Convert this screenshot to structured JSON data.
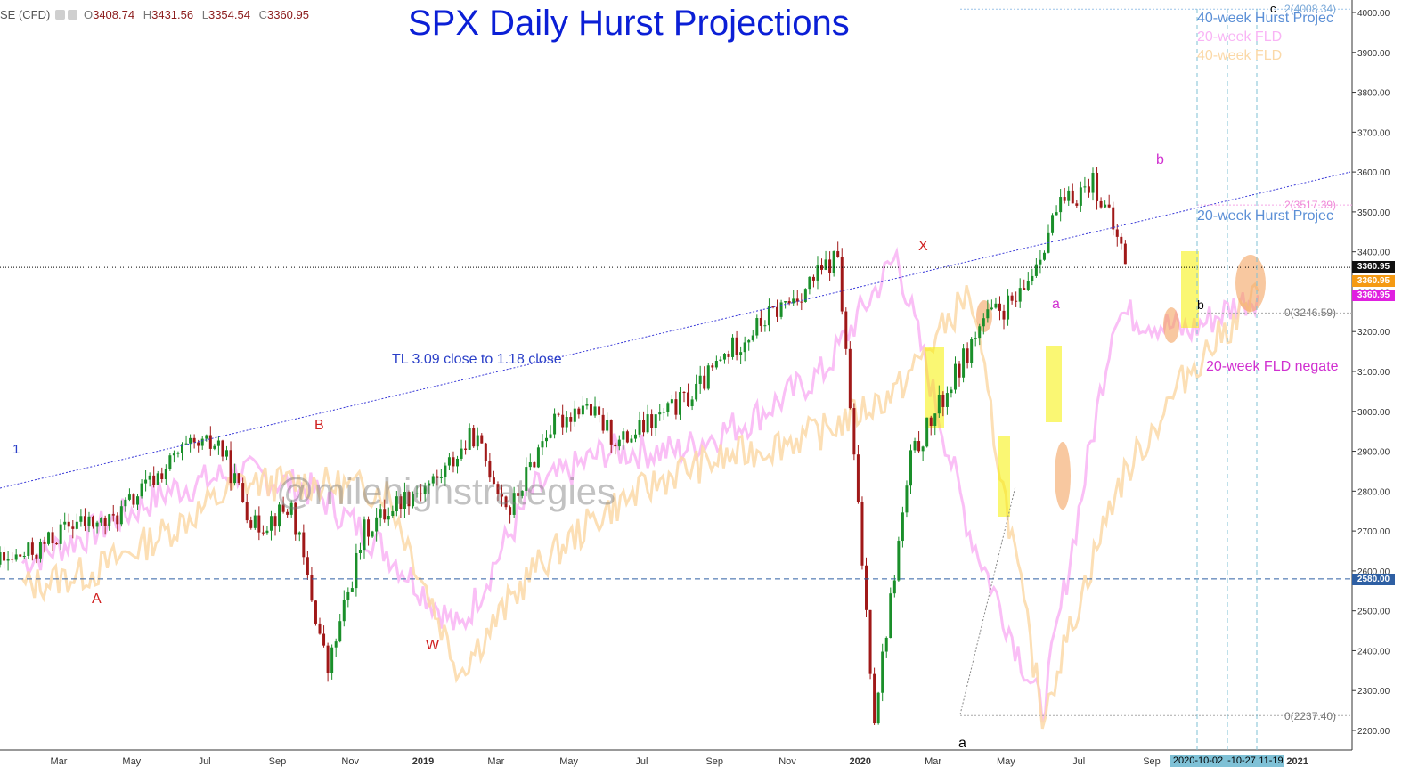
{
  "header": {
    "symbol": "SE (CFD)",
    "open_label": "O",
    "open": "3408.74",
    "high_label": "H",
    "high": "3431.56",
    "low_label": "L",
    "low": "3354.54",
    "close_label": "C",
    "close": "3360.95"
  },
  "title": "SPX Daily Hurst Projections",
  "watermark": "@milehighstrategies",
  "legend": {
    "hurst40": "40-week Hurst Projec",
    "fld20": "20-week FLD",
    "fld40": "40-week FLD",
    "hurst20": "20-week Hurst Projec",
    "fld20_neg": "20-week FLD negate"
  },
  "trendline_label": "TL 3.09 close to 1.18 close",
  "wave_labels": {
    "one": "1",
    "A": "A",
    "B": "B",
    "W": "W",
    "X": "X",
    "a_low": "a",
    "a_mid": "a",
    "b_top": "b",
    "b_small": "b",
    "c_top": "c"
  },
  "fib_labels": {
    "top_2": "2(4008.34)",
    "mid_2": "2(3517.39)",
    "zero_right": "0(3246.59)",
    "zero_low": "0(2237.40)"
  },
  "price_tags": {
    "last_black": "3360.95",
    "last_orange": "3360.95",
    "last_magenta": "3360.95",
    "support": "2580.00"
  },
  "date_tags": [
    "2020-10-02",
    "-10-27",
    "11-19"
  ],
  "colors": {
    "title": "#0b1fd6",
    "fld20": "#f9b4f5",
    "fld40": "#fbd9a8",
    "hurst": "#5b8fd6",
    "candle_up": "#1a8f2a",
    "candle_down": "#a01818",
    "support_line": "#2e5fa3",
    "highlight": "#f6f000",
    "ellipse": "#f4a460",
    "magenta_text": "#d030d0",
    "red_text": "#d02020"
  },
  "chart_data": {
    "type": "line",
    "title": "SPX Daily Hurst Projections",
    "ylim": [
      2180,
      4020
    ],
    "y_ticks": [
      "4000.00",
      "3900.00",
      "3800.00",
      "3700.00",
      "3600.00",
      "3500.00",
      "3400.00",
      "3300.00",
      "3200.00",
      "3100.00",
      "3000.00",
      "2900.00",
      "2800.00",
      "2700.00",
      "2600.00",
      "2500.00",
      "2400.00",
      "2300.00",
      "2200.00"
    ],
    "x_ticks": [
      "Mar",
      "May",
      "Jul",
      "Sep",
      "Nov",
      "2019",
      "Mar",
      "May",
      "Jul",
      "Sep",
      "Nov",
      "2020",
      "Mar",
      "May",
      "Jul",
      "Sep",
      "2021"
    ],
    "support_level": 2580,
    "last_price": 3360.95,
    "series": [
      {
        "name": "SPX",
        "x": [
          "2018-01",
          "2018-02",
          "2018-03",
          "2018-04",
          "2018-05",
          "2018-06",
          "2018-07",
          "2018-08",
          "2018-09",
          "2018-10",
          "2018-11",
          "2018-12",
          "2019-01",
          "2019-02",
          "2019-03",
          "2019-04",
          "2019-05",
          "2019-06",
          "2019-07",
          "2019-08",
          "2019-09",
          "2019-10",
          "2019-11",
          "2019-12",
          "2020-01",
          "2020-02",
          "2020-03",
          "2020-04",
          "2020-05",
          "2020-06",
          "2020-07",
          "2020-08",
          "2020-09",
          "2020-10"
        ],
        "values": [
          2870,
          2650,
          2620,
          2650,
          2720,
          2720,
          2810,
          2900,
          2920,
          2710,
          2760,
          2350,
          2700,
          2780,
          2830,
          2940,
          2750,
          2950,
          3020,
          2920,
          2980,
          3040,
          3150,
          3230,
          3300,
          3390,
          2240,
          2880,
          3050,
          3230,
          3280,
          3500,
          3580,
          3360
        ]
      },
      {
        "name": "20-week FLD",
        "x": [
          "2018-02",
          "2018-04",
          "2018-06",
          "2018-08",
          "2018-10",
          "2018-12",
          "2019-02",
          "2019-04",
          "2019-06",
          "2019-08",
          "2019-10",
          "2019-12",
          "2020-02",
          "2020-04",
          "2020-06",
          "2020-08",
          "2020-10",
          "2020-12"
        ],
        "values": [
          2620,
          2700,
          2800,
          2850,
          2800,
          2650,
          2450,
          2800,
          2900,
          2900,
          2980,
          3100,
          3390,
          2700,
          2250,
          3250,
          3200,
          3300
        ]
      },
      {
        "name": "40-week FLD",
        "x": [
          "2018-02",
          "2018-04",
          "2018-06",
          "2018-08",
          "2018-10",
          "2018-12",
          "2019-02",
          "2019-04",
          "2019-06",
          "2019-08",
          "2019-10",
          "2019-12",
          "2020-02",
          "2020-04",
          "2020-06",
          "2020-08",
          "2020-10",
          "2020-12"
        ],
        "values": [
          2560,
          2600,
          2700,
          2820,
          2820,
          2800,
          2350,
          2600,
          2750,
          2850,
          2900,
          2950,
          3050,
          3300,
          2240,
          2800,
          3100,
          3300
        ]
      }
    ],
    "trendline": {
      "label": "TL 3.09 close to 1.18 close",
      "from": [
        "2018-01",
        2870
      ],
      "to": [
        "2020-12",
        3600
      ]
    },
    "hurst_targets": [
      4008.34,
      3517.39,
      3246.59,
      2237.4
    ],
    "grid": false,
    "legend_position": "top-right"
  }
}
